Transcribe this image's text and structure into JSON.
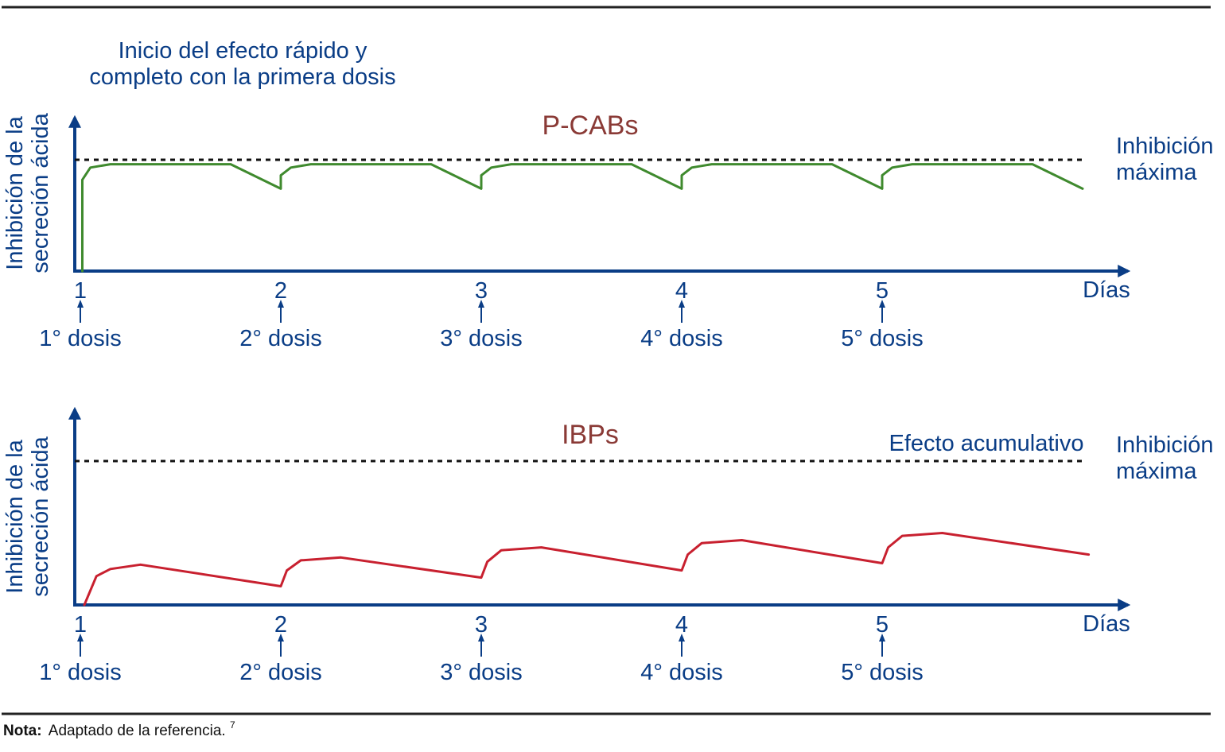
{
  "colors": {
    "text_blue": "#0a3d86",
    "title_red": "#8a3a36",
    "pcab_line": "#3f8a2e",
    "ibp_line": "#c8202f",
    "rule": "#222222"
  },
  "note": {
    "label": "Nota:",
    "text": "Adaptado de la referencia.",
    "sup": "7"
  },
  "chart_data": [
    {
      "type": "line",
      "title": "P-CABs",
      "ylabel_line1": "Inhibición de la",
      "ylabel_line2": "secreción ácida",
      "xlabel": "Días",
      "annotation_line1": "Inicio del efecto rápido y",
      "annotation_line2": "completo con la primera dosis",
      "reference_label_line1": "Inhibición",
      "reference_label_line2": "máxima",
      "reference_value": 100,
      "ylim": [
        0,
        100
      ],
      "xlim": [
        1,
        6
      ],
      "x_ticks": [
        "1",
        "2",
        "3",
        "4",
        "5"
      ],
      "dose_labels": [
        "1° dosis",
        "2° dosis",
        "3° dosis",
        "4° dosis",
        "5° dosis"
      ],
      "series": [
        {
          "points": [
            [
              1.01,
              0
            ],
            [
              1.01,
              82
            ],
            [
              1.05,
              93
            ],
            [
              1.15,
              96
            ],
            [
              1.75,
              96
            ],
            [
              2.0,
              74
            ],
            [
              2.0,
              86
            ],
            [
              2.05,
              93
            ],
            [
              2.15,
              96
            ],
            [
              2.75,
              96
            ],
            [
              3.0,
              74
            ],
            [
              3.0,
              86
            ],
            [
              3.05,
              93
            ],
            [
              3.15,
              96
            ],
            [
              3.75,
              96
            ],
            [
              4.0,
              74
            ],
            [
              4.0,
              86
            ],
            [
              4.05,
              93
            ],
            [
              4.15,
              96
            ],
            [
              4.75,
              96
            ],
            [
              5.0,
              74
            ],
            [
              5.0,
              86
            ],
            [
              5.05,
              93
            ],
            [
              5.15,
              96
            ],
            [
              5.75,
              96
            ],
            [
              6.0,
              74
            ]
          ]
        }
      ]
    },
    {
      "type": "line",
      "title": "IBPs",
      "ylabel_line1": "Inhibición de la",
      "ylabel_line2": "secreción ácida",
      "xlabel": "Días",
      "annotation_line1": "Efecto acumulativo",
      "reference_label_line1": "Inhibición",
      "reference_label_line2": "máxima",
      "reference_value": 100,
      "ylim": [
        0,
        100
      ],
      "xlim": [
        1,
        6
      ],
      "x_ticks": [
        "1",
        "2",
        "3",
        "4",
        "5"
      ],
      "dose_labels": [
        "1° dosis",
        "2° dosis",
        "3° dosis",
        "4° dosis",
        "5° dosis"
      ],
      "series": [
        {
          "points": [
            [
              1.02,
              0
            ],
            [
              1.08,
              20
            ],
            [
              1.15,
              25
            ],
            [
              1.3,
              28
            ],
            [
              2.0,
              13
            ],
            [
              2.03,
              24
            ],
            [
              2.1,
              31
            ],
            [
              2.3,
              33
            ],
            [
              3.0,
              19
            ],
            [
              3.03,
              30
            ],
            [
              3.1,
              38
            ],
            [
              3.3,
              40
            ],
            [
              4.0,
              24
            ],
            [
              4.03,
              35
            ],
            [
              4.1,
              43
            ],
            [
              4.3,
              45
            ],
            [
              5.0,
              29
            ],
            [
              5.03,
              40
            ],
            [
              5.1,
              48
            ],
            [
              5.3,
              50
            ],
            [
              6.03,
              35
            ]
          ]
        }
      ]
    }
  ]
}
